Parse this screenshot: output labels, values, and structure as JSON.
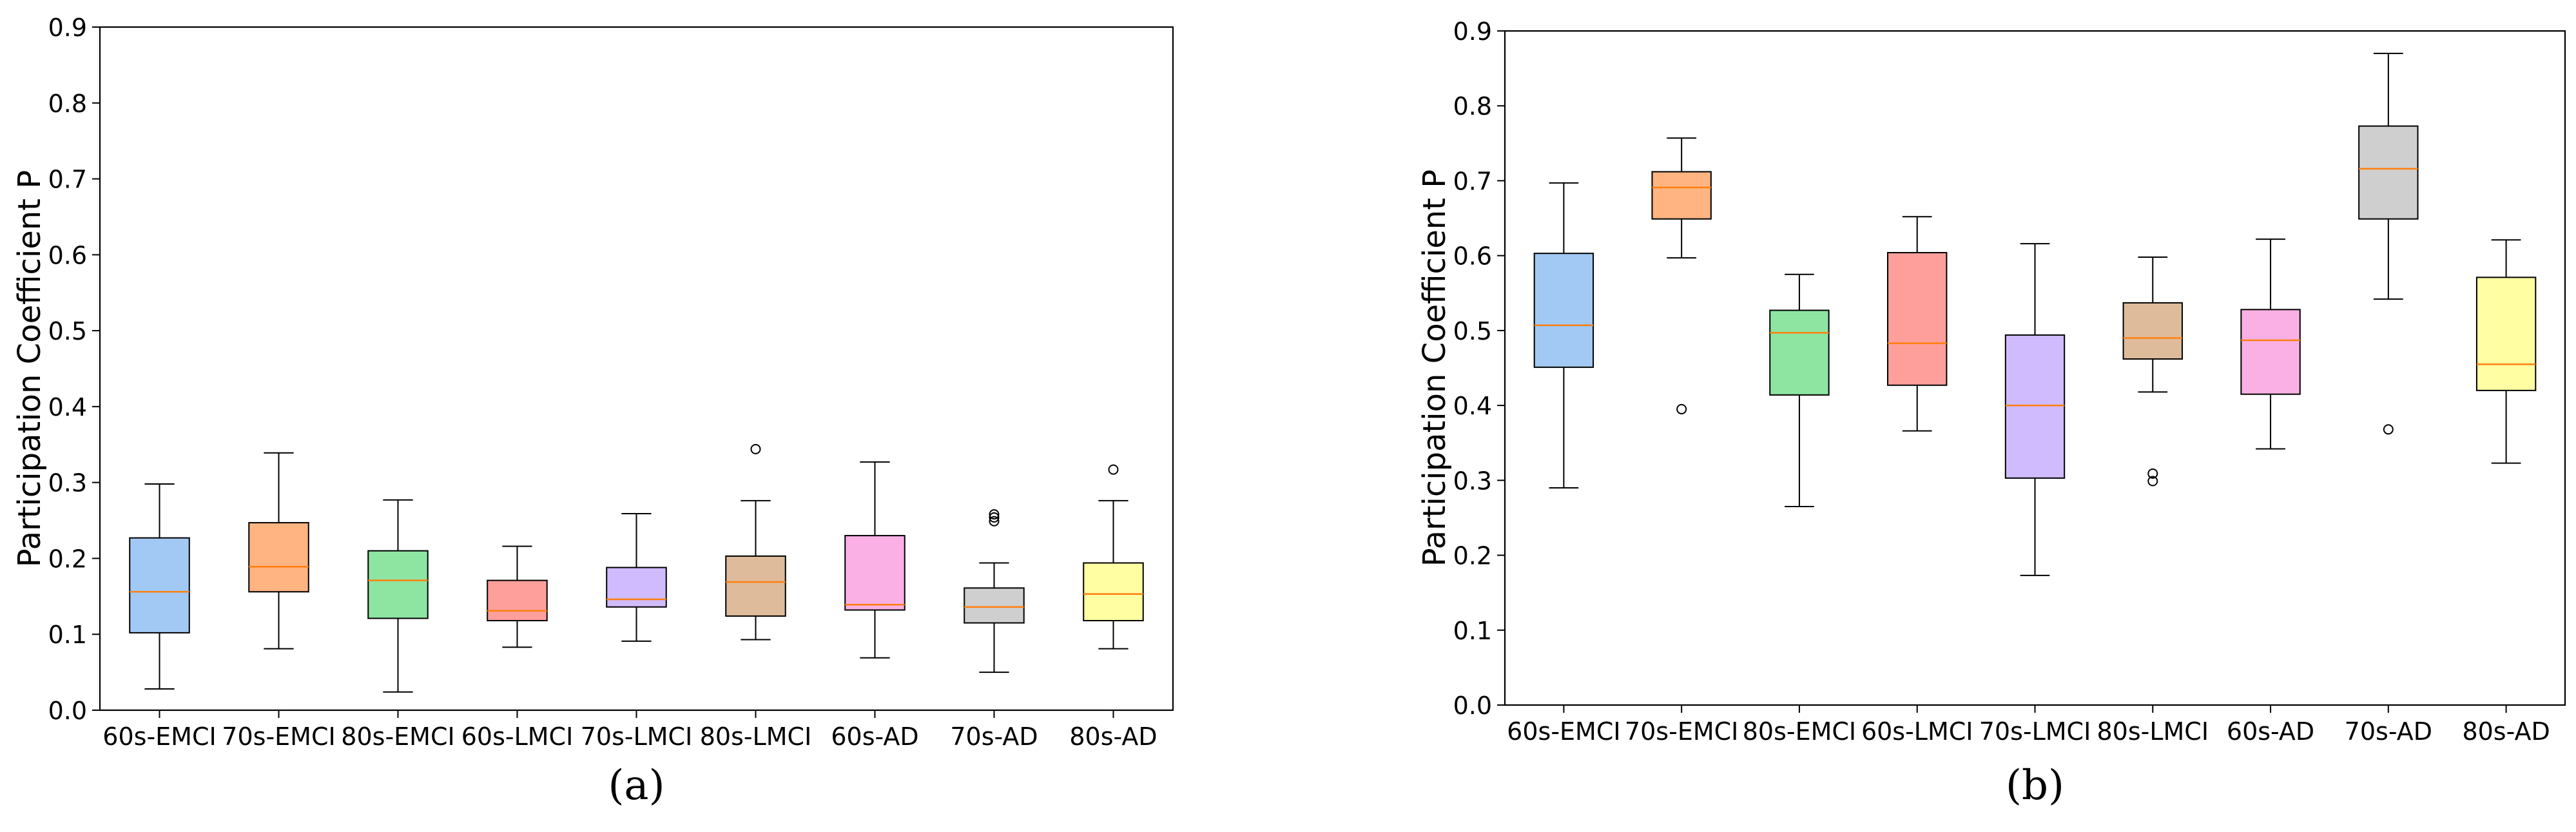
{
  "chart_data": [
    {
      "panel_label": "(a)",
      "type": "box",
      "ylabel": "Participation Coefficient P",
      "ylim": [
        0,
        0.9
      ],
      "yticks": [
        "0.0",
        "0.1",
        "0.2",
        "0.3",
        "0.4",
        "0.5",
        "0.6",
        "0.7",
        "0.8",
        "0.9"
      ],
      "categories": [
        "60s-EMCI",
        "70s-EMCI",
        "80s-EMCI",
        "60s-LMCI",
        "70s-LMCI",
        "80s-LMCI",
        "60s-AD",
        "70s-AD",
        "80s-AD"
      ],
      "colors": [
        "#a1c9f4",
        "#ffb482",
        "#8de5a1",
        "#ff9f9b",
        "#d0bbff",
        "#debb9b",
        "#fab0e4",
        "#cfcfcf",
        "#fffea3"
      ],
      "median_color": "#ff7f0e",
      "boxes": [
        {
          "whislo": 0.028,
          "q1": 0.102,
          "med": 0.156,
          "q3": 0.227,
          "whishi": 0.298,
          "fliers": []
        },
        {
          "whislo": 0.081,
          "q1": 0.156,
          "med": 0.189,
          "q3": 0.247,
          "whishi": 0.339,
          "fliers": []
        },
        {
          "whislo": 0.024,
          "q1": 0.121,
          "med": 0.171,
          "q3": 0.21,
          "whishi": 0.277,
          "fliers": []
        },
        {
          "whislo": 0.083,
          "q1": 0.118,
          "med": 0.131,
          "q3": 0.171,
          "whishi": 0.216,
          "fliers": []
        },
        {
          "whislo": 0.091,
          "q1": 0.136,
          "med": 0.146,
          "q3": 0.188,
          "whishi": 0.259,
          "fliers": []
        },
        {
          "whislo": 0.093,
          "q1": 0.124,
          "med": 0.169,
          "q3": 0.203,
          "whishi": 0.276,
          "fliers": [
            0.344
          ]
        },
        {
          "whislo": 0.069,
          "q1": 0.132,
          "med": 0.139,
          "q3": 0.23,
          "whishi": 0.327,
          "fliers": []
        },
        {
          "whislo": 0.05,
          "q1": 0.115,
          "med": 0.136,
          "q3": 0.161,
          "whishi": 0.194,
          "fliers": [
            0.249,
            0.254,
            0.258
          ]
        },
        {
          "whislo": 0.081,
          "q1": 0.118,
          "med": 0.153,
          "q3": 0.194,
          "whishi": 0.276,
          "fliers": [
            0.317
          ]
        }
      ]
    },
    {
      "panel_label": "(b)",
      "type": "box",
      "ylabel": "Participation Coefficient P",
      "ylim": [
        0,
        0.9
      ],
      "yticks": [
        "0.0",
        "0.1",
        "0.2",
        "0.3",
        "0.4",
        "0.5",
        "0.6",
        "0.7",
        "0.8",
        "0.9"
      ],
      "categories": [
        "60s-EMCI",
        "70s-EMCI",
        "80s-EMCI",
        "60s-LMCI",
        "70s-LMCI",
        "80s-LMCI",
        "60s-AD",
        "70s-AD",
        "80s-AD"
      ],
      "colors": [
        "#a1c9f4",
        "#ffb482",
        "#8de5a1",
        "#ff9f9b",
        "#d0bbff",
        "#debb9b",
        "#fab0e4",
        "#cfcfcf",
        "#fffea3"
      ],
      "median_color": "#ff7f0e",
      "boxes": [
        {
          "whislo": 0.29,
          "q1": 0.451,
          "med": 0.507,
          "q3": 0.603,
          "whishi": 0.697,
          "fliers": []
        },
        {
          "whislo": 0.597,
          "q1": 0.649,
          "med": 0.691,
          "q3": 0.712,
          "whishi": 0.757,
          "fliers": [
            0.395
          ]
        },
        {
          "whislo": 0.265,
          "q1": 0.414,
          "med": 0.497,
          "q3": 0.527,
          "whishi": 0.575,
          "fliers": []
        },
        {
          "whislo": 0.366,
          "q1": 0.427,
          "med": 0.483,
          "q3": 0.604,
          "whishi": 0.652,
          "fliers": []
        },
        {
          "whislo": 0.173,
          "q1": 0.303,
          "med": 0.4,
          "q3": 0.494,
          "whishi": 0.616,
          "fliers": []
        },
        {
          "whislo": 0.418,
          "q1": 0.462,
          "med": 0.49,
          "q3": 0.537,
          "whishi": 0.598,
          "fliers": [
            0.299,
            0.309
          ]
        },
        {
          "whislo": 0.342,
          "q1": 0.415,
          "med": 0.487,
          "q3": 0.528,
          "whishi": 0.622,
          "fliers": []
        },
        {
          "whislo": 0.542,
          "q1": 0.649,
          "med": 0.716,
          "q3": 0.773,
          "whishi": 0.87,
          "fliers": [
            0.368
          ]
        },
        {
          "whislo": 0.323,
          "q1": 0.42,
          "med": 0.455,
          "q3": 0.571,
          "whishi": 0.621,
          "fliers": []
        }
      ]
    }
  ]
}
